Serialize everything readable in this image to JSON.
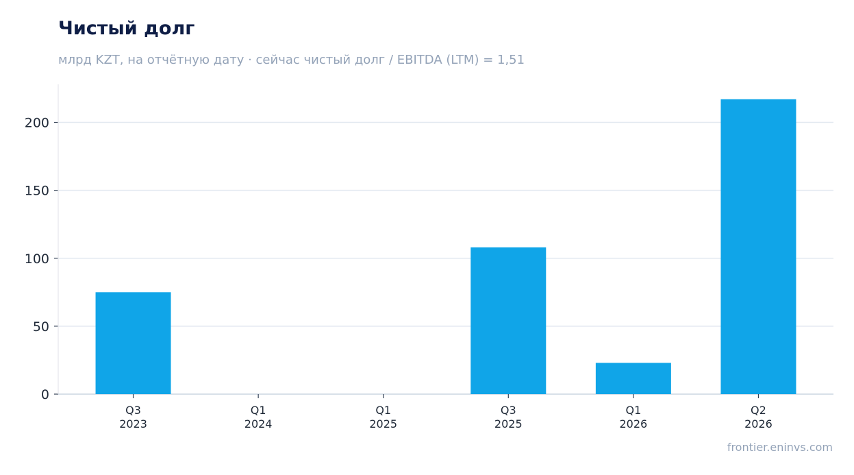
{
  "title": "Чистый долг",
  "subtitle": "млрд KZT, на отчётную дату · сейчас чистый долг / EBITDA (LTM) = 1,51",
  "footer": "frontier.eninvs.com",
  "colors": {
    "bar": "#10a5e8",
    "grid": "#e2e8f0",
    "axis": "#cbd5e1"
  },
  "chart_data": {
    "type": "bar",
    "categories": [
      [
        "Q3",
        "2023"
      ],
      [
        "Q1",
        "2024"
      ],
      [
        "Q1",
        "2025"
      ],
      [
        "Q3",
        "2025"
      ],
      [
        "Q1",
        "2026"
      ],
      [
        "Q2",
        "2026"
      ]
    ],
    "values": [
      75,
      0,
      0,
      108,
      23,
      217
    ],
    "ylim": [
      0,
      228
    ],
    "yticks": [
      0,
      50,
      100,
      150,
      200
    ],
    "grid": true
  }
}
